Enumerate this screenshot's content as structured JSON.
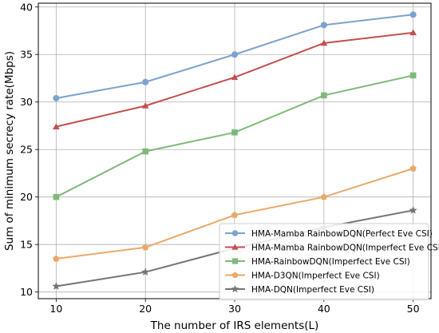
{
  "chart_data": {
    "type": "line",
    "xlabel": "The number of IRS elements(L)",
    "ylabel": "Sum of minimum secrecy rate(Mbps)",
    "x": [
      10,
      20,
      30,
      40,
      50
    ],
    "xlim": [
      8,
      52
    ],
    "ylim": [
      9.3,
      40.4
    ],
    "xticks": [
      10,
      20,
      30,
      40,
      50
    ],
    "yticks": [
      10,
      15,
      20,
      25,
      30,
      35,
      40
    ],
    "grid": true,
    "legend_position": "lower-right",
    "series": [
      {
        "name": "HMA-Mamba RainbowDQN(Perfect Eve CSI)",
        "color": "#7ba3cd",
        "marker": "circle",
        "values": [
          30.4,
          32.1,
          35.0,
          38.1,
          39.2
        ]
      },
      {
        "name": "HMA-Mamba RainbowDQN(Imperfect Eve CSI)",
        "color": "#c44e52",
        "marker": "triangle",
        "values": [
          27.4,
          29.6,
          32.6,
          36.2,
          37.3
        ]
      },
      {
        "name": "HMA-RainbowDQN(Imperfect Eve CSI)",
        "color": "#7fb97a",
        "marker": "square",
        "values": [
          20.0,
          24.8,
          26.8,
          30.7,
          32.8
        ]
      },
      {
        "name": "HMA-D3QN(Imperfect Eve CSI)",
        "color": "#e9a968",
        "marker": "pentagon",
        "values": [
          13.5,
          14.7,
          18.1,
          20.0,
          23.0
        ]
      },
      {
        "name": "HMA-DQN(Imperfect Eve CSI)",
        "color": "#757575",
        "marker": "star",
        "values": [
          10.6,
          12.1,
          14.6,
          16.8,
          18.6
        ]
      }
    ]
  }
}
